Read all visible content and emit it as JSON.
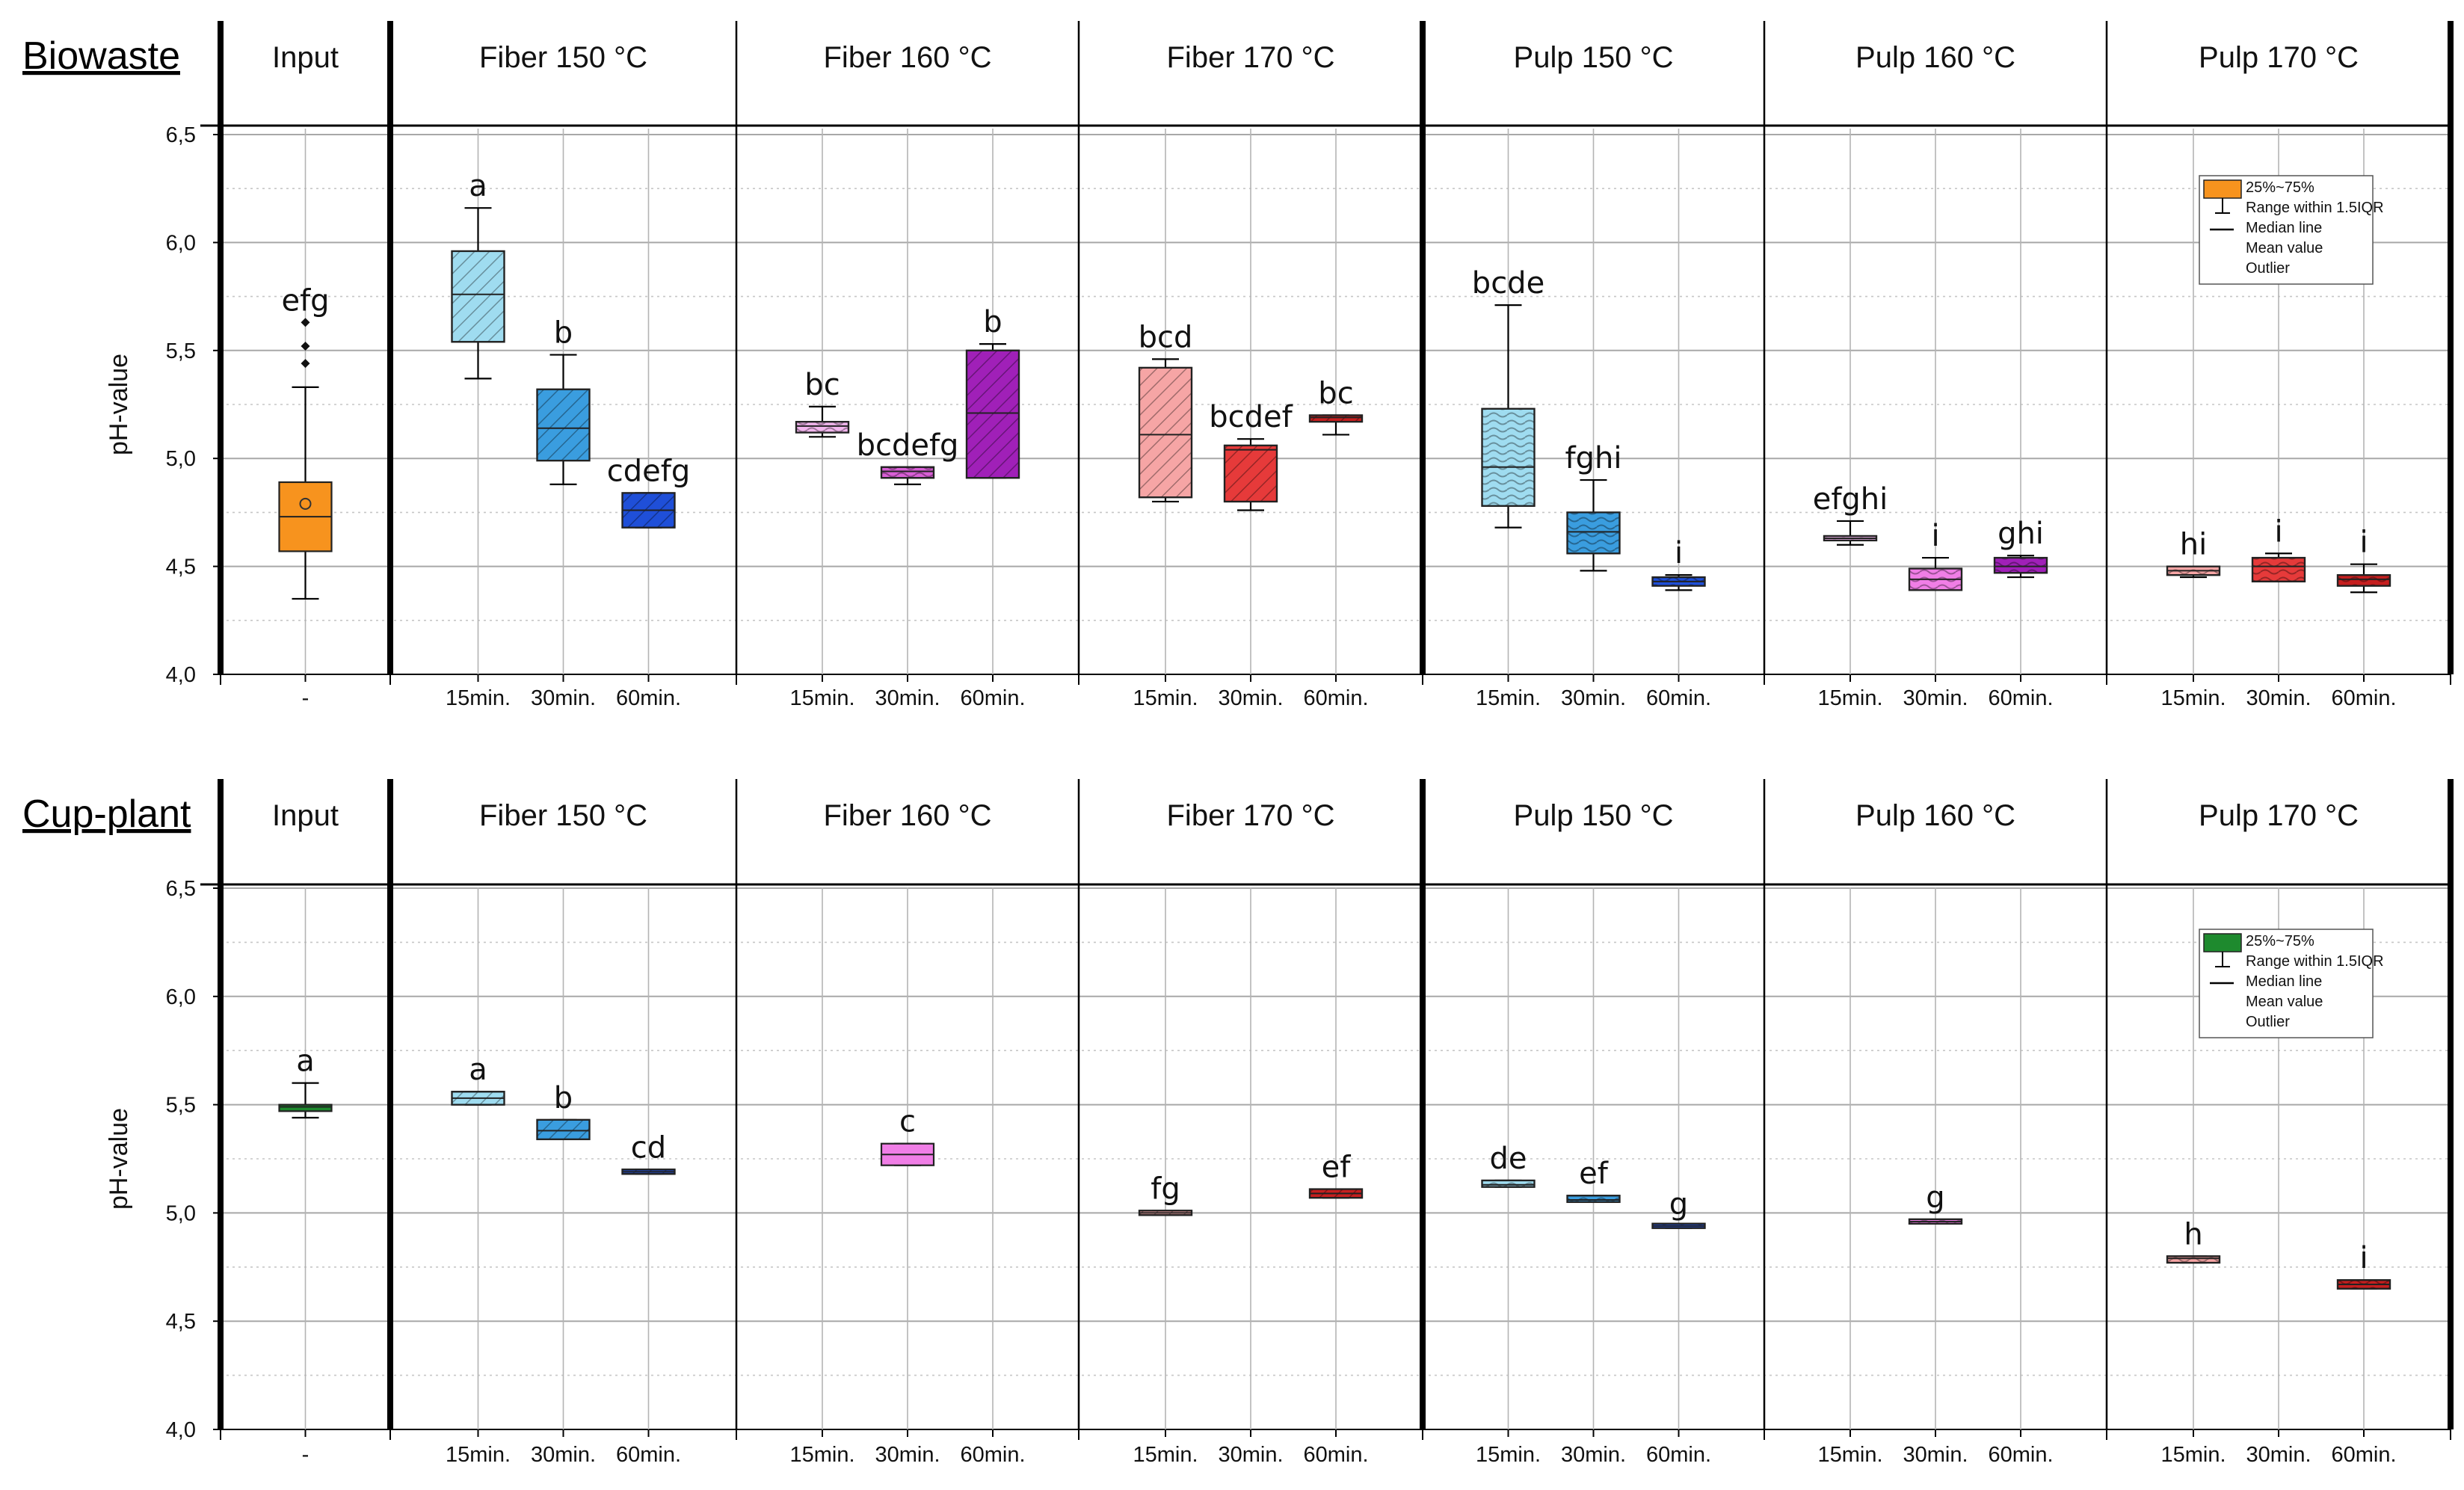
{
  "chart_data": [
    {
      "type": "box",
      "row_label": "Biowaste",
      "ylabel": "pH-value",
      "ylim": [
        4.0,
        6.5
      ],
      "yticks": [
        "4,0",
        "4,5",
        "5,0",
        "5,5",
        "6,0",
        "6,5"
      ],
      "grid": true,
      "legend_position": "top-right",
      "legend": {
        "color": "#f7931e",
        "items": [
          "25%~75%",
          "Range within 1.5IQR",
          "Median line",
          "Mean value",
          "Outlier"
        ]
      },
      "groups": [
        {
          "title": "Input",
          "xticks": [
            "-"
          ],
          "boxes": [
            {
              "x": "-",
              "q1": 4.57,
              "median": 4.73,
              "q3": 4.89,
              "whisker_low": 4.35,
              "whisker_high": 5.33,
              "mean": 4.79,
              "outliers": [
                5.44,
                5.52,
                5.63
              ],
              "label": "efg",
              "color": "#f7931e",
              "hatch": "none"
            }
          ]
        },
        {
          "title": "Fiber 150 °C",
          "xticks": [
            "15min.",
            "30min.",
            "60min."
          ],
          "boxes": [
            {
              "x": "15min.",
              "q1": 5.54,
              "median": 5.76,
              "q3": 5.96,
              "whisker_low": 5.37,
              "whisker_high": 6.16,
              "label": "a",
              "color": "#9fdcf0",
              "hatch": "diag"
            },
            {
              "x": "30min.",
              "q1": 4.99,
              "median": 5.14,
              "q3": 5.32,
              "whisker_low": 4.88,
              "whisker_high": 5.48,
              "label": "b",
              "color": "#3a9ddf",
              "hatch": "diag"
            },
            {
              "x": "60min.",
              "q1": 4.68,
              "median": 4.76,
              "q3": 4.84,
              "whisker_low": 4.68,
              "whisker_high": 4.84,
              "label": "cdefg",
              "color": "#1f4fd8",
              "hatch": "diag"
            }
          ]
        },
        {
          "title": "Fiber 160 °C",
          "xticks": [
            "15min.",
            "30min.",
            "60min."
          ],
          "boxes": [
            {
              "x": "15min.",
              "q1": 5.12,
              "median": 5.15,
              "q3": 5.17,
              "whisker_low": 5.1,
              "whisker_high": 5.24,
              "label": "bc",
              "color": "#f2b6ee",
              "hatch": "wave"
            },
            {
              "x": "30min.",
              "q1": 4.91,
              "median": 4.94,
              "q3": 4.96,
              "whisker_low": 4.88,
              "whisker_high": 4.96,
              "label": "bcdefg",
              "color": "#d95fd6",
              "hatch": "wave"
            },
            {
              "x": "60min.",
              "q1": 4.91,
              "median": 5.21,
              "q3": 5.5,
              "whisker_low": 4.91,
              "whisker_high": 5.53,
              "label": "b",
              "color": "#a020b8",
              "hatch": "diag"
            }
          ]
        },
        {
          "title": "Fiber 170 °C",
          "xticks": [
            "15min.",
            "30min.",
            "60min."
          ],
          "boxes": [
            {
              "x": "15min.",
              "q1": 4.82,
              "median": 5.11,
              "q3": 5.42,
              "whisker_low": 4.8,
              "whisker_high": 5.46,
              "label": "bcd",
              "color": "#f6a5a5",
              "hatch": "diag"
            },
            {
              "x": "30min.",
              "q1": 4.8,
              "median": 5.04,
              "q3": 5.06,
              "whisker_low": 4.76,
              "whisker_high": 5.09,
              "label": "bcdef",
              "color": "#e63a3a",
              "hatch": "diag"
            },
            {
              "x": "60min.",
              "q1": 5.17,
              "median": 5.19,
              "q3": 5.2,
              "whisker_low": 5.11,
              "whisker_high": 5.2,
              "label": "bc",
              "color": "#c61f1f",
              "hatch": "diag"
            }
          ]
        },
        {
          "title": "Pulp 150 °C",
          "xticks": [
            "15min.",
            "30min.",
            "60min."
          ],
          "boxes": [
            {
              "x": "15min.",
              "q1": 4.78,
              "median": 4.96,
              "q3": 5.23,
              "whisker_low": 4.68,
              "whisker_high": 5.71,
              "label": "bcde",
              "color": "#9fdcf0",
              "hatch": "wave"
            },
            {
              "x": "30min.",
              "q1": 4.56,
              "median": 4.66,
              "q3": 4.75,
              "whisker_low": 4.48,
              "whisker_high": 4.9,
              "label": "fghi",
              "color": "#3a9ddf",
              "hatch": "wave"
            },
            {
              "x": "60min.",
              "q1": 4.41,
              "median": 4.43,
              "q3": 4.45,
              "whisker_low": 4.39,
              "whisker_high": 4.46,
              "label": "i",
              "color": "#1f4fd8",
              "hatch": "wave"
            }
          ]
        },
        {
          "title": "Pulp 160 °C",
          "xticks": [
            "15min.",
            "30min.",
            "60min."
          ],
          "boxes": [
            {
              "x": "15min.",
              "q1": 4.62,
              "median": 4.63,
              "q3": 4.64,
              "whisker_low": 4.6,
              "whisker_high": 4.71,
              "label": "efghi",
              "color": "#f2b6ee",
              "hatch": "wave"
            },
            {
              "x": "30min.",
              "q1": 4.39,
              "median": 4.44,
              "q3": 4.49,
              "whisker_low": 4.39,
              "whisker_high": 4.54,
              "label": "i",
              "color": "#f07ee6",
              "hatch": "wave"
            },
            {
              "x": "60min.",
              "q1": 4.47,
              "median": 4.5,
              "q3": 4.54,
              "whisker_low": 4.45,
              "whisker_high": 4.55,
              "label": "ghi",
              "color": "#a020b8",
              "hatch": "wave"
            }
          ]
        },
        {
          "title": "Pulp 170 °C",
          "xticks": [
            "15min.",
            "30min.",
            "60min."
          ],
          "boxes": [
            {
              "x": "15min.",
              "q1": 4.46,
              "median": 4.48,
              "q3": 4.5,
              "whisker_low": 4.45,
              "whisker_high": 4.5,
              "label": "hi",
              "color": "#f6a5a5",
              "hatch": "wave"
            },
            {
              "x": "30min.",
              "q1": 4.43,
              "median": 4.5,
              "q3": 4.54,
              "whisker_low": 4.43,
              "whisker_high": 4.56,
              "label": "i",
              "color": "#e63a3a",
              "hatch": "wave"
            },
            {
              "x": "60min.",
              "q1": 4.41,
              "median": 4.44,
              "q3": 4.46,
              "whisker_low": 4.38,
              "whisker_high": 4.51,
              "label": "i",
              "color": "#c61f1f",
              "hatch": "wave"
            }
          ]
        }
      ]
    },
    {
      "type": "box",
      "row_label": "Cup-plant",
      "ylabel": "pH-value",
      "ylim": [
        4.0,
        6.5
      ],
      "yticks": [
        "4,0",
        "4,5",
        "5,0",
        "5,5",
        "6,0",
        "6,5"
      ],
      "grid": true,
      "legend_position": "top-right",
      "legend": {
        "color": "#1e8a2e",
        "items": [
          "25%~75%",
          "Range within 1.5IQR",
          "Median line",
          "Mean value",
          "Outlier"
        ]
      },
      "groups": [
        {
          "title": "Input",
          "xticks": [
            "-"
          ],
          "boxes": [
            {
              "x": "-",
              "q1": 5.47,
              "median": 5.49,
              "q3": 5.5,
              "whisker_low": 5.44,
              "whisker_high": 5.6,
              "label": "a",
              "color": "#1e8a2e",
              "hatch": "none"
            }
          ]
        },
        {
          "title": "Fiber 150 °C",
          "xticks": [
            "15min.",
            "30min.",
            "60min."
          ],
          "boxes": [
            {
              "x": "15min.",
              "q1": 5.5,
              "median": 5.53,
              "q3": 5.56,
              "whisker_low": 5.5,
              "whisker_high": 5.56,
              "label": "a",
              "color": "#9fdcf0",
              "hatch": "diag"
            },
            {
              "x": "30min.",
              "q1": 5.34,
              "median": 5.38,
              "q3": 5.43,
              "whisker_low": 5.34,
              "whisker_high": 5.43,
              "label": "b",
              "color": "#3a9ddf",
              "hatch": "diag"
            },
            {
              "x": "60min.",
              "q1": 5.18,
              "median": 5.19,
              "q3": 5.2,
              "whisker_low": 5.18,
              "whisker_high": 5.2,
              "label": "cd",
              "color": "#1f4fd8",
              "hatch": "diag"
            }
          ]
        },
        {
          "title": "Fiber 160 °C",
          "xticks": [
            "15min.",
            "30min.",
            "60min."
          ],
          "boxes": [
            {
              "x": "30min.",
              "q1": 5.22,
              "median": 5.27,
              "q3": 5.32,
              "whisker_low": 5.22,
              "whisker_high": 5.32,
              "label": "c",
              "color": "#f07ee6",
              "hatch": "none"
            }
          ]
        },
        {
          "title": "Fiber 170 °C",
          "xticks": [
            "15min.",
            "30min.",
            "60min."
          ],
          "boxes": [
            {
              "x": "15min.",
              "q1": 4.99,
              "median": 5.0,
              "q3": 5.01,
              "whisker_low": 4.99,
              "whisker_high": 5.01,
              "label": "fg",
              "color": "#f6a5a5",
              "hatch": "diag"
            },
            {
              "x": "60min.",
              "q1": 5.07,
              "median": 5.09,
              "q3": 5.11,
              "whisker_low": 5.07,
              "whisker_high": 5.11,
              "label": "ef",
              "color": "#c61f1f",
              "hatch": "diag"
            }
          ]
        },
        {
          "title": "Pulp 150 °C",
          "xticks": [
            "15min.",
            "30min.",
            "60min."
          ],
          "boxes": [
            {
              "x": "15min.",
              "q1": 5.12,
              "median": 5.13,
              "q3": 5.15,
              "whisker_low": 5.12,
              "whisker_high": 5.15,
              "label": "de",
              "color": "#9fdcf0",
              "hatch": "wave"
            },
            {
              "x": "30min.",
              "q1": 5.05,
              "median": 5.06,
              "q3": 5.08,
              "whisker_low": 5.05,
              "whisker_high": 5.08,
              "label": "ef",
              "color": "#3a9ddf",
              "hatch": "wave"
            },
            {
              "x": "60min.",
              "q1": 4.93,
              "median": 4.94,
              "q3": 4.94,
              "whisker_low": 4.93,
              "whisker_high": 4.94,
              "label": "g",
              "color": "#1f4fd8",
              "hatch": "wave"
            }
          ]
        },
        {
          "title": "Pulp 160 °C",
          "xticks": [
            "15min.",
            "30min.",
            "60min."
          ],
          "boxes": [
            {
              "x": "30min.",
              "q1": 4.95,
              "median": 4.96,
              "q3": 4.97,
              "whisker_low": 4.95,
              "whisker_high": 4.97,
              "label": "g",
              "color": "#f07ee6",
              "hatch": "wave"
            }
          ]
        },
        {
          "title": "Pulp 170 °C",
          "xticks": [
            "15min.",
            "30min.",
            "60min."
          ],
          "boxes": [
            {
              "x": "15min.",
              "q1": 4.77,
              "median": 4.79,
              "q3": 4.8,
              "whisker_low": 4.77,
              "whisker_high": 4.8,
              "label": "h",
              "color": "#f6a5a5",
              "hatch": "wave"
            },
            {
              "x": "60min.",
              "q1": 4.65,
              "median": 4.67,
              "q3": 4.69,
              "whisker_low": 4.65,
              "whisker_high": 4.69,
              "label": "i",
              "color": "#c61f1f",
              "hatch": "wave"
            }
          ]
        }
      ]
    }
  ]
}
